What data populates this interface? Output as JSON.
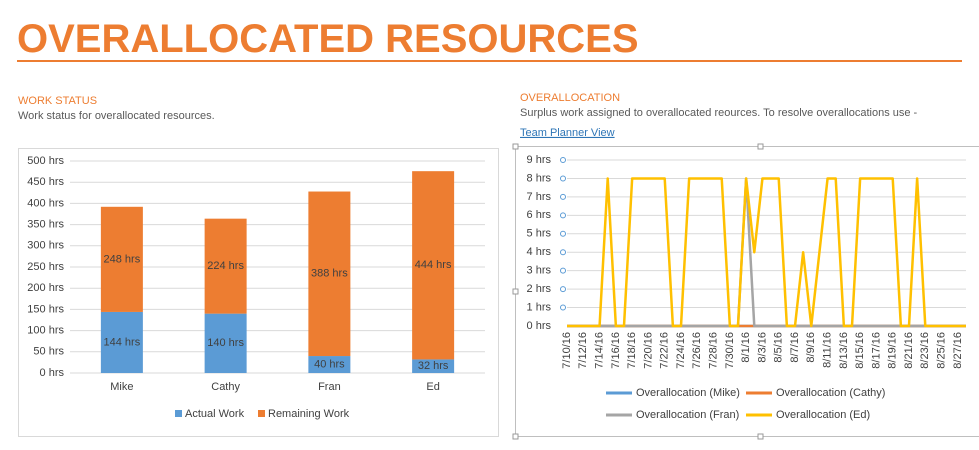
{
  "header": {
    "title": "OVERALLOCATED RESOURCES"
  },
  "work_status": {
    "heading": "WORK STATUS",
    "description": "Work status for overallocated resources."
  },
  "overallocation": {
    "heading": "OVERALLOCATION",
    "description": "Surplus work assigned to overallocated reources. To resolve overallocations use -",
    "link": "Team Planner View"
  },
  "chart_data": [
    {
      "type": "bar",
      "stacked": true,
      "grid": true,
      "legend": "bottom",
      "categories": [
        "Mike",
        "Cathy",
        "Fran",
        "Ed"
      ],
      "series": [
        {
          "name": "Actual Work",
          "color": "#5b9bd5",
          "values": [
            144,
            140,
            40,
            32
          ],
          "value_labels": [
            "144 hrs",
            "140 hrs",
            "40 hrs",
            "32 hrs"
          ]
        },
        {
          "name": "Remaining Work",
          "color": "#ed7d31",
          "values": [
            248,
            224,
            388,
            444
          ],
          "value_labels": [
            "248 hrs",
            "224 hrs",
            "388 hrs",
            "444 hrs"
          ]
        }
      ],
      "ylim": [
        0,
        500
      ],
      "yticks": [
        {
          "value": 0,
          "label": "0 hrs"
        },
        {
          "value": 50,
          "label": "50 hrs"
        },
        {
          "value": 100,
          "label": "100 hrs"
        },
        {
          "value": 150,
          "label": "150 hrs"
        },
        {
          "value": 200,
          "label": "200 hrs"
        },
        {
          "value": 250,
          "label": "250 hrs"
        },
        {
          "value": 300,
          "label": "300 hrs"
        },
        {
          "value": 350,
          "label": "350 hrs"
        },
        {
          "value": 400,
          "label": "400 hrs"
        },
        {
          "value": 450,
          "label": "450 hrs"
        },
        {
          "value": 500,
          "label": "500 hrs"
        }
      ]
    },
    {
      "type": "line",
      "grid": true,
      "legend": "bottom",
      "categories": [
        "7/10/16",
        null,
        "7/12/16",
        null,
        "7/14/16",
        null,
        "7/16/16",
        null,
        "7/18/16",
        null,
        "7/20/16",
        null,
        "7/22/16",
        null,
        "7/24/16",
        null,
        "7/26/16",
        null,
        "7/28/16",
        null,
        "7/30/16",
        null,
        "8/1/16",
        null,
        "8/3/16",
        null,
        "8/5/16",
        null,
        "8/7/16",
        null,
        "8/9/16",
        null,
        "8/11/16",
        null,
        "8/13/16",
        null,
        "8/15/16",
        null,
        "8/17/16",
        null,
        "8/19/16",
        null,
        "8/21/16",
        null,
        "8/23/16",
        null,
        "8/25/16",
        null,
        "8/27/16",
        null
      ],
      "series": [
        {
          "name": "Overallocation (Mike)",
          "color": "#5b9bd5",
          "values": [
            0,
            0,
            0,
            0,
            0,
            0,
            0,
            0,
            0,
            0,
            0,
            0,
            0,
            0,
            0,
            0,
            0,
            0,
            0,
            0,
            0,
            0,
            0,
            0,
            0,
            0,
            0,
            0,
            0,
            0,
            0,
            0,
            0,
            0,
            0,
            0,
            0,
            0,
            0,
            0,
            0,
            0,
            0,
            0,
            0,
            0,
            0,
            0,
            0,
            0
          ]
        },
        {
          "name": "Overallocation (Cathy)",
          "color": "#ed7d31",
          "values": [
            0,
            0,
            0,
            0,
            0,
            0,
            0,
            0,
            0,
            0,
            0,
            0,
            0,
            0,
            0,
            0,
            0,
            0,
            0,
            0,
            0,
            0,
            0,
            0,
            0,
            0,
            0,
            0,
            0,
            0,
            0,
            0,
            0,
            0,
            0,
            0,
            0,
            0,
            0,
            0,
            0,
            0,
            0,
            0,
            0,
            0,
            0,
            0,
            0,
            0
          ]
        },
        {
          "name": "Overallocation (Fran)",
          "color": "#a5a5a5",
          "values": [
            0,
            0,
            0,
            0,
            0,
            0,
            0,
            0,
            0,
            0,
            0,
            0,
            0,
            0,
            0,
            0,
            0,
            0,
            0,
            0,
            0,
            0,
            8,
            0,
            0,
            0,
            0,
            0,
            0,
            0,
            0,
            0,
            0,
            0,
            0,
            0,
            0,
            0,
            0,
            0,
            0,
            0,
            0,
            0,
            0,
            0,
            0,
            0,
            0,
            0
          ]
        },
        {
          "name": "Overallocation (Ed)",
          "color": "#ffc000",
          "values": [
            0,
            0,
            0,
            0,
            0,
            8,
            0,
            0,
            8,
            8,
            8,
            8,
            8,
            0,
            0,
            8,
            8,
            8,
            8,
            8,
            0,
            0,
            8,
            4,
            8,
            8,
            8,
            0,
            0,
            4,
            0,
            4,
            8,
            8,
            0,
            0,
            8,
            8,
            8,
            8,
            8,
            0,
            0,
            8,
            0,
            0,
            0,
            0,
            0,
            0
          ]
        }
      ],
      "ylim": [
        0,
        9
      ],
      "yticks": [
        {
          "value": 0,
          "label": "0 hrs"
        },
        {
          "value": 1,
          "label": "1 hrs"
        },
        {
          "value": 2,
          "label": "2 hrs"
        },
        {
          "value": 3,
          "label": "3 hrs"
        },
        {
          "value": 4,
          "label": "4 hrs"
        },
        {
          "value": 5,
          "label": "5 hrs"
        },
        {
          "value": 6,
          "label": "6 hrs"
        },
        {
          "value": 7,
          "label": "7 hrs"
        },
        {
          "value": 8,
          "label": "8 hrs"
        },
        {
          "value": 9,
          "label": "9 hrs"
        }
      ]
    }
  ]
}
